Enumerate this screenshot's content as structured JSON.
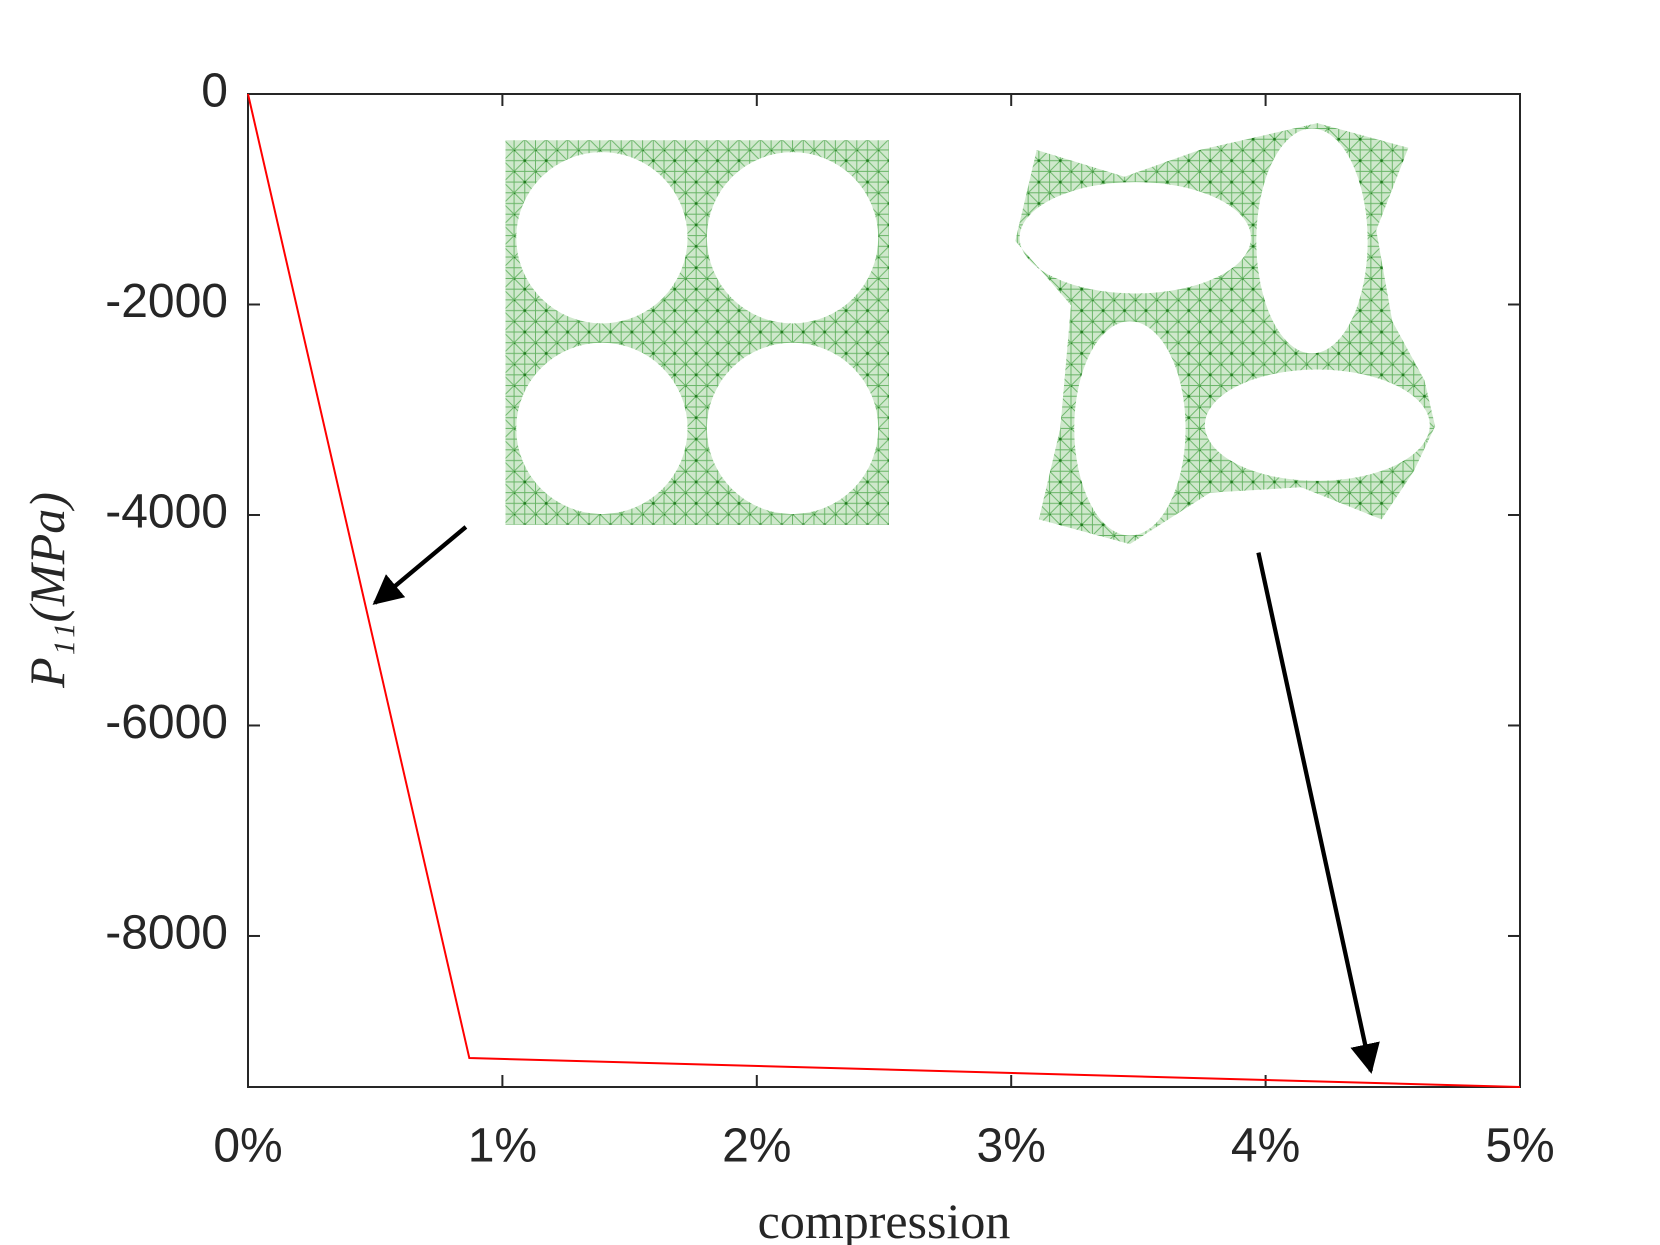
{
  "chart_data": {
    "type": "line",
    "x_label": "compression",
    "y_label": "P₁₁(MPa)",
    "x": [
      0,
      0.87,
      5
    ],
    "values": [
      0,
      -9160,
      -9435
    ],
    "color": "#ff0000",
    "xlim": [
      0,
      5
    ],
    "ylim": [
      -9435,
      0
    ],
    "xticks": [
      {
        "value": 0,
        "label": "0%"
      },
      {
        "value": 1,
        "label": "1%"
      },
      {
        "value": 2,
        "label": "2%"
      },
      {
        "value": 3,
        "label": "3%"
      },
      {
        "value": 4,
        "label": "4%"
      },
      {
        "value": 5,
        "label": "5%"
      }
    ],
    "yticks": [
      -8000,
      -6000,
      -4000,
      -2000,
      0
    ],
    "grid": false
  }
}
